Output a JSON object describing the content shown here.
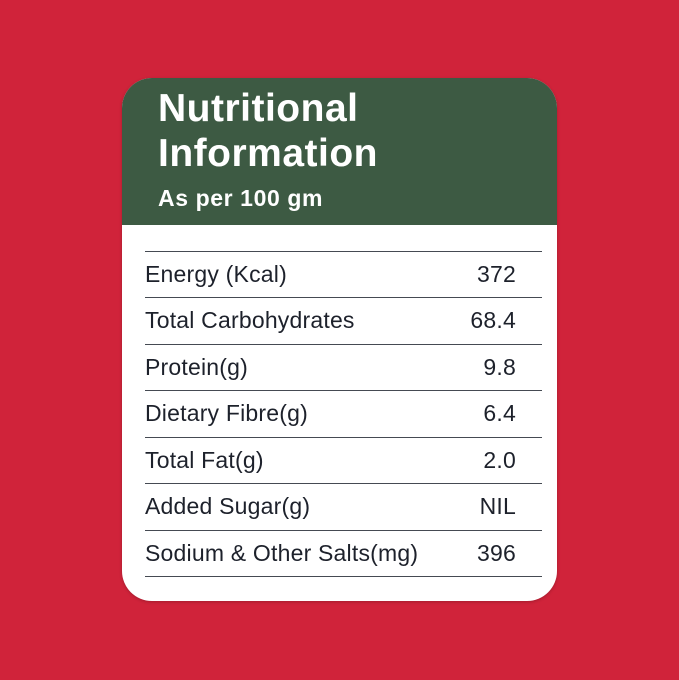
{
  "colors": {
    "page_background": "#d0233a",
    "header_background": "#3d5a43",
    "card_background": "#ffffff",
    "header_text": "#ffffff",
    "table_text": "#1d212b",
    "divider": "#454a52"
  },
  "card": {
    "header": {
      "title_lines": [
        "Nutritional",
        "Information"
      ],
      "subtitle": "As per 100 gm"
    },
    "table": {
      "rows": [
        {
          "label": "Energy (Kcal)",
          "value": "372"
        },
        {
          "label": "Total Carbohydrates",
          "value": "68.4"
        },
        {
          "label": "Protein(g)",
          "value": "9.8"
        },
        {
          "label": "Dietary Fibre(g)",
          "value": "6.4"
        },
        {
          "label": "Total Fat(g)",
          "value": "2.0"
        },
        {
          "label": "Added Sugar(g)",
          "value": "NIL"
        },
        {
          "label": "Sodium & Other Salts(mg)",
          "value": "396"
        }
      ]
    }
  }
}
